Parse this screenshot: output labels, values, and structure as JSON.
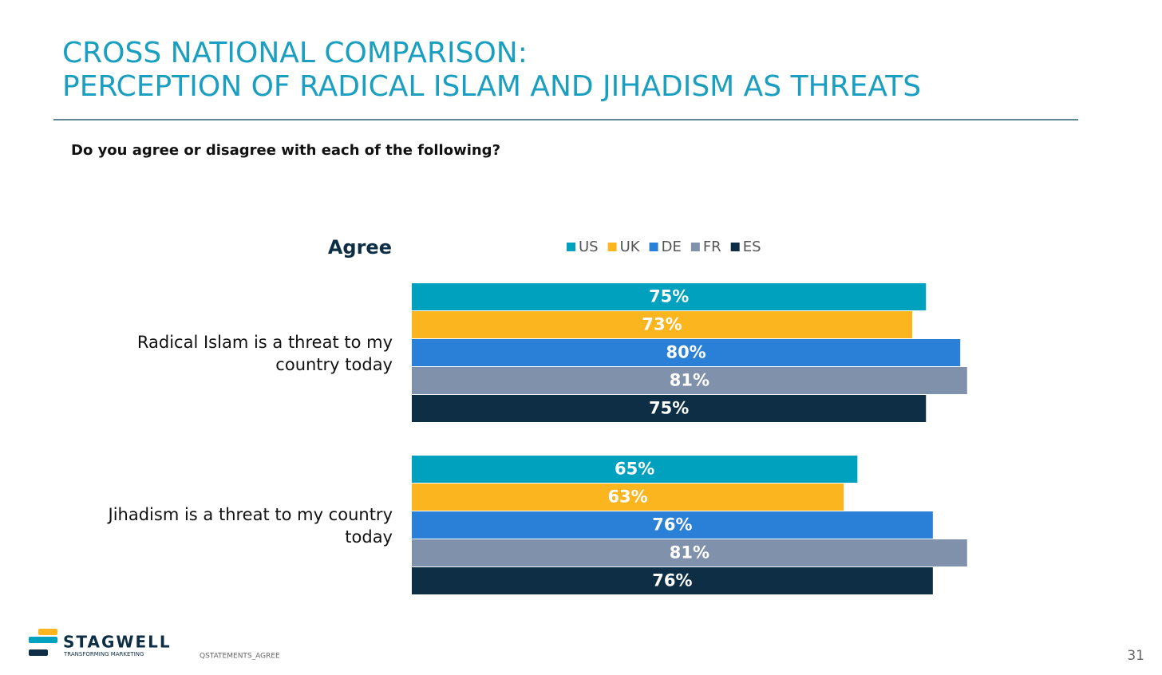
{
  "header": {
    "title_lines": [
      "CROSS NATIONAL COMPARISON:",
      "PERCEPTION OF RADICAL ISLAM AND JIHADISM AS THREATS"
    ],
    "question": "Do you agree or disagree with each of the following?"
  },
  "chart_data": {
    "type": "hbar",
    "label": "Agree",
    "categories": [
      "Radical Islam is a threat to my country today",
      "Jihadism is a threat to my country today"
    ],
    "legend": "top",
    "series": [
      {
        "name": "US",
        "color": "#00a0bf",
        "values": [
          75,
          65
        ],
        "value_labels": [
          "75%",
          "65%"
        ]
      },
      {
        "name": "UK",
        "color": "#fbb51f",
        "values": [
          73,
          63
        ],
        "value_labels": [
          "73%",
          "63%"
        ]
      },
      {
        "name": "DE",
        "color": "#2a7fd6",
        "values": [
          80,
          76
        ],
        "value_labels": [
          "80%",
          "76%"
        ]
      },
      {
        "name": "FR",
        "color": "#8091ab",
        "values": [
          81,
          81
        ],
        "value_labels": [
          "81%",
          "81%"
        ]
      },
      {
        "name": "ES",
        "color": "#0d2e44",
        "values": [
          75,
          76
        ],
        "value_labels": [
          "75%",
          "76%"
        ]
      }
    ]
  },
  "footer": {
    "brand": "STAGWELL",
    "tagline": "TRANSFORMING MARKETING",
    "code": "QSTATEMENTS_AGREE",
    "page": "31"
  }
}
